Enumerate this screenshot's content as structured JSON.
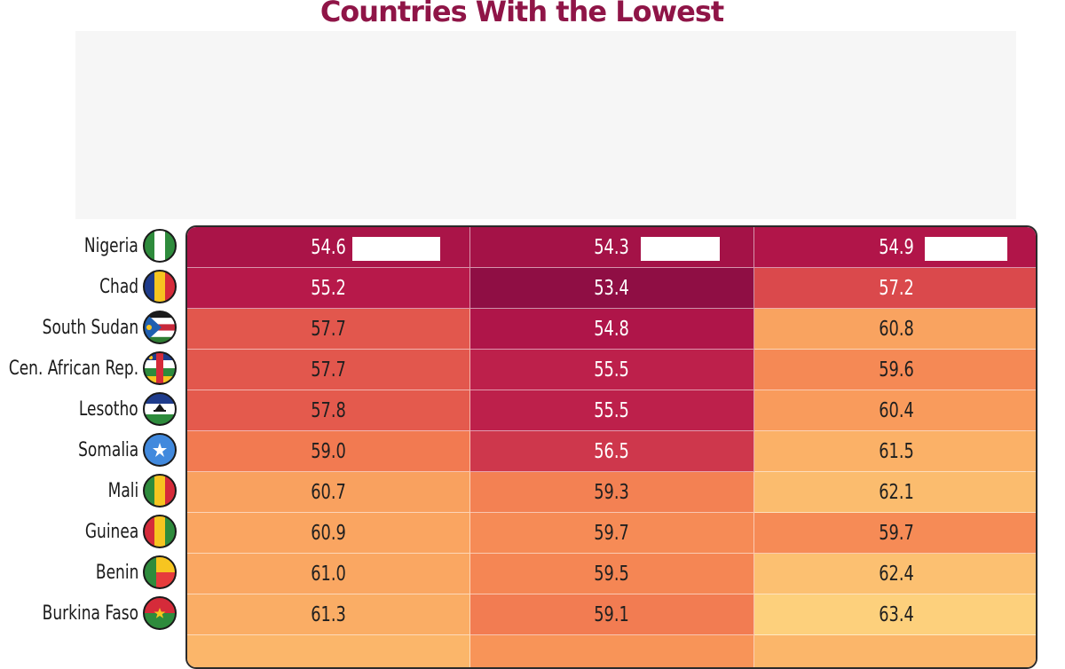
{
  "title": "Countries With the Lowest",
  "chart_data": {
    "type": "heatmap",
    "title": "Countries With the Lowest",
    "rows": [
      "Nigeria",
      "Chad",
      "South Sudan",
      "Cen. African Rep.",
      "Lesotho",
      "Somalia",
      "Mali",
      "Guinea",
      "Benin",
      "Burkina Faso"
    ],
    "values": [
      [
        54.6,
        54.3,
        54.9
      ],
      [
        55.2,
        53.4,
        57.2
      ],
      [
        57.7,
        54.8,
        60.8
      ],
      [
        57.7,
        55.5,
        59.6
      ],
      [
        57.8,
        55.5,
        60.4
      ],
      [
        59.0,
        56.5,
        61.5
      ],
      [
        60.7,
        59.3,
        62.1
      ],
      [
        60.9,
        59.7,
        59.7
      ],
      [
        61.0,
        59.5,
        62.4
      ],
      [
        61.3,
        59.1,
        63.4
      ]
    ],
    "color_scale": [
      "#8f0e44",
      "#b5164a",
      "#d23c4c",
      "#ee6b4d",
      "#f89458",
      "#fbb66a",
      "#fdd07c"
    ]
  },
  "flags": [
    "nigeria-flag-icon",
    "chad-flag-icon",
    "south-sudan-flag-icon",
    "cen-african-rep-flag-icon",
    "lesotho-flag-icon",
    "somalia-flag-icon",
    "mali-flag-icon",
    "guinea-flag-icon",
    "benin-flag-icon",
    "burkina-faso-flag-icon"
  ]
}
